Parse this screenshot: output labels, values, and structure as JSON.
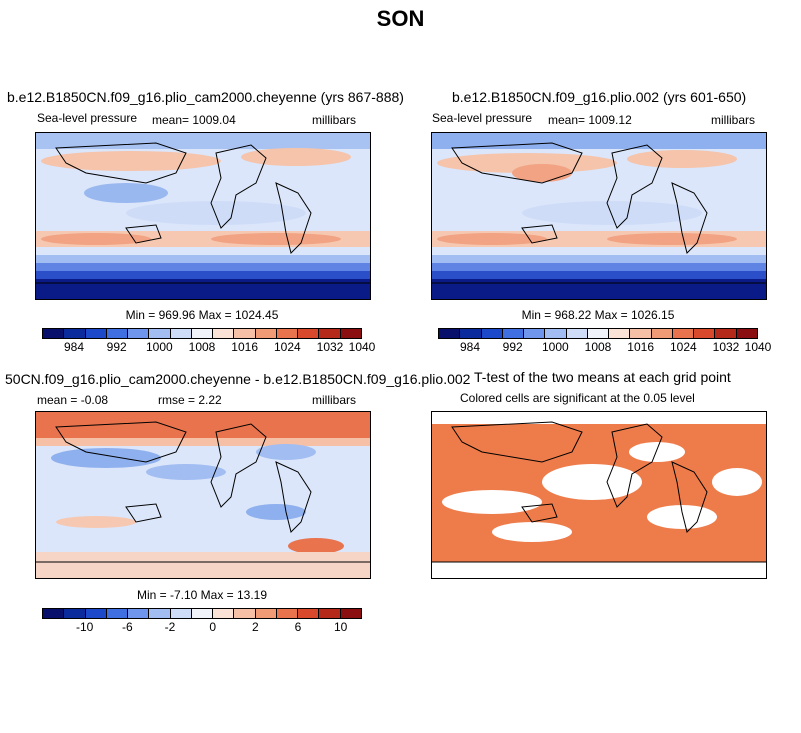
{
  "page_title": "SON",
  "panels": {
    "p1": {
      "title": "b.e12.B1850CN.f09_g16.plio_cam2000.cheyenne (yrs 867-888)",
      "variable": "Sea-level pressure",
      "mean": "mean= 1009.04",
      "units": "millibars",
      "minmax": "Min = 969.96 Max = 1024.45"
    },
    "p2": {
      "title": "b.e12.B1850CN.f09_g16.plio.002 (yrs 601-650)",
      "variable": "Sea-level pressure",
      "mean": "mean= 1009.12",
      "units": "millibars",
      "minmax": "Min = 968.22 Max = 1026.15"
    },
    "p3": {
      "title": "50CN.f09_g16.plio_cam2000.cheyenne - b.e12.B1850CN.f09_g16.plio.002",
      "mean": "mean =  -0.08",
      "rmse": "rmse =    2.22",
      "units": "millibars",
      "minmax": "Min =   -7.10 Max =   13.19"
    },
    "p4": {
      "title": "T-test of the two means at each grid point",
      "subtitle": "Colored cells are significant at the 0.05 level"
    }
  },
  "colorbar_abs": {
    "ticks": [
      "984",
      "992",
      "1000",
      "1008",
      "1016",
      "1024",
      "1032",
      "1040"
    ],
    "colors": [
      "#08106b",
      "#0b2b9c",
      "#1b49c9",
      "#3f6fe0",
      "#6f96ec",
      "#a2bdf2",
      "#cfdcf8",
      "#f1f3fb",
      "#fbe2d6",
      "#f6c0a6",
      "#f09a76",
      "#e8734d",
      "#d84a2b",
      "#b4291a",
      "#8b0f10"
    ]
  },
  "colorbar_diff": {
    "ticks": [
      "-10",
      "-6",
      "-2",
      "0",
      "2",
      "6",
      "10"
    ],
    "colors": [
      "#08106b",
      "#0b2b9c",
      "#1b49c9",
      "#3f6fe0",
      "#6f96ec",
      "#a2bdf2",
      "#cfdcf8",
      "#f1f3fb",
      "#fbe2d6",
      "#f6c0a6",
      "#f09a76",
      "#e8734d",
      "#d84a2b",
      "#b4291a",
      "#8b0f10"
    ]
  }
}
